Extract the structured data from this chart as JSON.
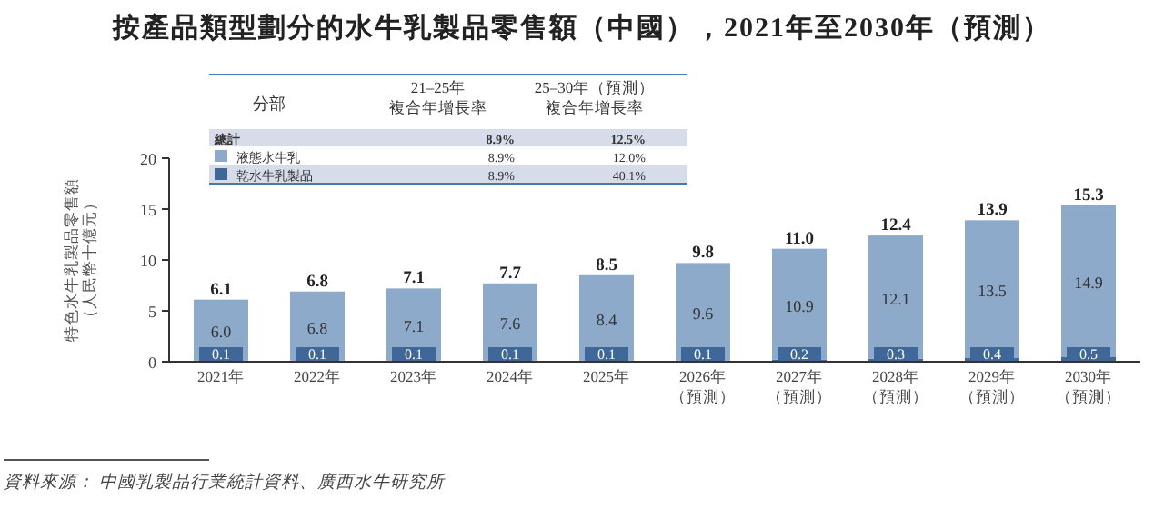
{
  "chart_data": {
    "type": "bar",
    "title": "按產品類型劃分的水牛乳製品零售額（中國），2021年至2030年（預測）",
    "ylabel": "特色水牛乳製品零售額（人民幣十億元）",
    "categories": [
      "2021年",
      "2022年",
      "2023年",
      "2024年",
      "2025年",
      "2026年（預測）",
      "2027年（預測）",
      "2028年（預測）",
      "2029年（預測）",
      "2030年（預測）"
    ],
    "series": [
      {
        "name": "乾水牛乳製品",
        "color": "#3f6797",
        "values": [
          0.1,
          0.1,
          0.1,
          0.1,
          0.1,
          0.1,
          0.2,
          0.3,
          0.4,
          0.5
        ],
        "value_labels": [
          "0.1",
          "0.1",
          "0.1",
          "0.1",
          "0.1",
          "0.1",
          "0.2",
          "0.3",
          "0.4",
          "0.5"
        ]
      },
      {
        "name": "液態水牛乳",
        "color": "#8eaacb",
        "values": [
          6.0,
          6.8,
          7.1,
          7.6,
          8.4,
          9.6,
          10.9,
          12.1,
          13.5,
          14.9
        ],
        "value_labels": [
          "6.0",
          "6.8",
          "7.1",
          "7.6",
          "8.4",
          "9.6",
          "10.9",
          "12.1",
          "13.5",
          "14.9"
        ]
      }
    ],
    "stacked": true,
    "totals": [
      "6.1",
      "6.8",
      "7.1",
      "7.7",
      "8.5",
      "9.8",
      "11.0",
      "12.4",
      "13.9",
      "15.3"
    ],
    "ylim": [
      0,
      20
    ],
    "yticks": [
      0,
      5,
      10,
      15,
      20
    ],
    "legend": "top left",
    "annotations": [
      "分部",
      "21–25年",
      "複合年增長率",
      "25–30年（預測）",
      "複合年增長率",
      "總計",
      "8.9%",
      "12.5%",
      "8.9%",
      "12.0%",
      "8.9%",
      "40.1%",
      "資料來源：  中國乳製品行業統計資料、廣西水牛研究所"
    ]
  }
}
